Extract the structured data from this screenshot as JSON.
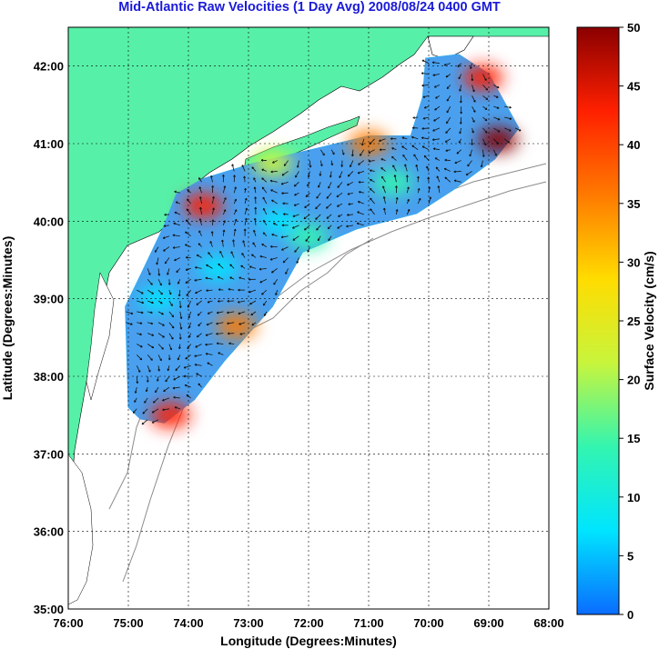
{
  "title": "Mid-Atlantic Raw Velocities (1 Day Avg) 2008/08/24 0400 GMT",
  "map": {
    "xlabel": "Longitude (Degrees:Minutes)",
    "ylabel": "Latitude (Degrees:Minutes)",
    "lon_range": [
      -76,
      -68
    ],
    "lat_range": [
      35,
      42.5
    ],
    "lon_ticks": [
      -76,
      -75,
      -74,
      -73,
      -72,
      -71,
      -70,
      -69,
      -68
    ],
    "lon_tick_labels": [
      "76:00",
      "75:00",
      "74:00",
      "73:00",
      "72:00",
      "71:00",
      "70:00",
      "69:00",
      "68:00"
    ],
    "lat_ticks": [
      35,
      36,
      37,
      38,
      39,
      40,
      41,
      42
    ],
    "lat_tick_labels": [
      "35:00",
      "36:00",
      "37:00",
      "38:00",
      "39:00",
      "40:00",
      "41:00",
      "42:00"
    ],
    "grid": true,
    "land_color": "#57f0a8",
    "coverage": {
      "polygon": [
        [
          -75.0,
          37.6
        ],
        [
          -75.05,
          38.9
        ],
        [
          -74.8,
          39.3
        ],
        [
          -74.4,
          39.95
        ],
        [
          -74.2,
          40.35
        ],
        [
          -73.75,
          40.55
        ],
        [
          -72.9,
          40.75
        ],
        [
          -71.8,
          40.95
        ],
        [
          -71.0,
          41.1
        ],
        [
          -70.3,
          41.1
        ],
        [
          -70.1,
          41.6
        ],
        [
          -70.05,
          42.1
        ],
        [
          -69.5,
          42.15
        ],
        [
          -69.0,
          41.9
        ],
        [
          -68.5,
          41.2
        ],
        [
          -68.9,
          40.8
        ],
        [
          -69.6,
          40.4
        ],
        [
          -70.2,
          40.1
        ],
        [
          -71.2,
          39.9
        ],
        [
          -72.1,
          39.6
        ],
        [
          -72.6,
          38.9
        ],
        [
          -73.0,
          38.55
        ],
        [
          -73.4,
          38.2
        ],
        [
          -73.9,
          37.7
        ],
        [
          -74.4,
          37.4
        ],
        [
          -74.8,
          37.45
        ]
      ],
      "base_color": "#4aa0ee",
      "patches": [
        {
          "lon": -74.3,
          "lat": 37.5,
          "speed": 42
        },
        {
          "lon": -73.2,
          "lat": 38.65,
          "speed": 38
        },
        {
          "lon": -71.0,
          "lat": 41.0,
          "speed": 35
        },
        {
          "lon": -68.85,
          "lat": 41.05,
          "speed": 48
        },
        {
          "lon": -69.1,
          "lat": 41.85,
          "speed": 46
        },
        {
          "lon": -73.75,
          "lat": 40.2,
          "speed": 40
        },
        {
          "lon": -72.6,
          "lat": 40.75,
          "speed": 22
        },
        {
          "lon": -70.6,
          "lat": 40.5,
          "speed": 14
        },
        {
          "lon": -72.0,
          "lat": 39.8,
          "speed": 14
        },
        {
          "lon": -74.5,
          "lat": 39.0,
          "speed": 5
        },
        {
          "lon": -73.5,
          "lat": 39.4,
          "speed": 6
        },
        {
          "lon": -72.5,
          "lat": 40.0,
          "speed": 8
        }
      ]
    },
    "arrows": {
      "color": "#111111",
      "spacing_deg": 0.18
    }
  },
  "colorbar": {
    "label": "Surface Velocity (cm/s)",
    "min": 0,
    "max": 50,
    "ticks": [
      0,
      5,
      10,
      15,
      20,
      25,
      30,
      35,
      40,
      45,
      50
    ],
    "tick_labels": [
      "0",
      "5",
      "10",
      "15",
      "20",
      "25",
      "30",
      "35",
      "40",
      "45",
      "50"
    ],
    "colors": [
      "#0a6cff",
      "#00e5ff",
      "#33f5b0",
      "#c8f53c",
      "#ffdc00",
      "#ff7a00",
      "#ff2000",
      "#8a0000"
    ]
  }
}
